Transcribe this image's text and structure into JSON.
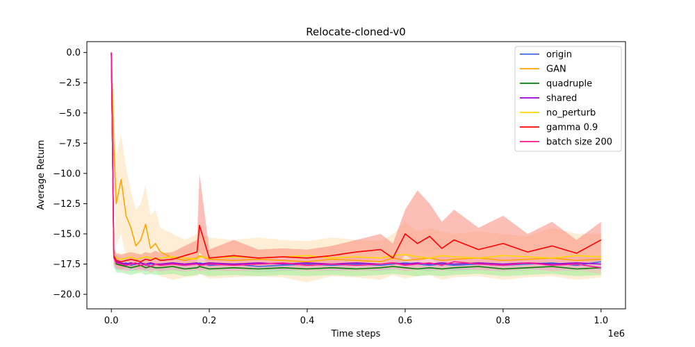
{
  "chart_data": {
    "type": "line",
    "title": "Relocate-cloned-v0",
    "xlabel": "Time steps",
    "ylabel": "Average Return",
    "x_scale_label": "1e6",
    "xlim": [
      -0.05,
      1.05
    ],
    "ylim": [
      -21.2,
      0.9
    ],
    "x_ticks": [
      0.0,
      0.2,
      0.4,
      0.6,
      0.8,
      1.0
    ],
    "x_tick_labels": [
      "0.0",
      "0.2",
      "0.4",
      "0.6",
      "0.8",
      "1.0"
    ],
    "y_ticks": [
      0.0,
      -2.5,
      -5.0,
      -7.5,
      -10.0,
      -12.5,
      -15.0,
      -17.5,
      -20.0
    ],
    "y_tick_labels": [
      "0.0",
      "−2.5",
      "−5.0",
      "−7.5",
      "−10.0",
      "−12.5",
      "−15.0",
      "−17.5",
      "−20.0"
    ],
    "grid": false,
    "legend_position": "top-right",
    "x": [
      0.0,
      0.005,
      0.01,
      0.02,
      0.03,
      0.04,
      0.05,
      0.06,
      0.07,
      0.08,
      0.09,
      0.1,
      0.125,
      0.15,
      0.175,
      0.18,
      0.2,
      0.25,
      0.3,
      0.35,
      0.4,
      0.45,
      0.5,
      0.55,
      0.575,
      0.6,
      0.625,
      0.65,
      0.675,
      0.7,
      0.75,
      0.8,
      0.85,
      0.9,
      0.95,
      1.0
    ],
    "series": [
      {
        "name": "origin",
        "color": "#4169e1",
        "band_color": "#87ceeb",
        "values": [
          0.0,
          -16.9,
          -17.4,
          -17.5,
          -17.4,
          -17.6,
          -17.5,
          -17.4,
          -17.6,
          -17.5,
          -17.5,
          -17.6,
          -17.5,
          -17.6,
          -17.5,
          -17.4,
          -17.6,
          -17.5,
          -17.7,
          -17.6,
          -17.5,
          -17.6,
          -17.5,
          -17.6,
          -17.5,
          -17.4,
          -17.5,
          -17.6,
          -17.5,
          -17.6,
          -17.5,
          -17.6,
          -17.5,
          -17.4,
          -17.6,
          -17.3
        ],
        "band_low": [
          0.0,
          -17.8,
          -18.0,
          -18.0,
          -17.9,
          -18.1,
          -18.0,
          -17.9,
          -18.1,
          -18.0,
          -18.0,
          -18.1,
          -18.0,
          -18.1,
          -18.0,
          -17.9,
          -18.1,
          -18.0,
          -18.2,
          -18.1,
          -18.0,
          -18.1,
          -18.0,
          -18.1,
          -18.0,
          -17.9,
          -18.0,
          -18.1,
          -18.0,
          -18.1,
          -18.0,
          -18.1,
          -18.0,
          -17.9,
          -18.1,
          -17.8
        ],
        "band_high": [
          0.0,
          -16.2,
          -16.8,
          -17.0,
          -16.9,
          -17.1,
          -17.0,
          -16.9,
          -17.1,
          -17.0,
          -17.0,
          -17.1,
          -17.0,
          -17.1,
          -17.0,
          -16.9,
          -17.1,
          -17.0,
          -17.2,
          -17.1,
          -17.0,
          -17.1,
          -17.0,
          -17.1,
          -17.0,
          -16.9,
          -17.0,
          -17.1,
          -17.0,
          -17.1,
          -17.0,
          -17.1,
          -17.0,
          -16.9,
          -17.1,
          -16.8
        ]
      },
      {
        "name": "GAN",
        "color": "#ffa500",
        "band_color": "#ffdead",
        "values": [
          0.0,
          -7.8,
          -12.5,
          -10.5,
          -13.5,
          -14.5,
          -16.0,
          -15.5,
          -14.2,
          -16.2,
          -15.8,
          -16.5,
          -17.0,
          -17.2,
          -17.0,
          -16.8,
          -17.1,
          -17.2,
          -17.1,
          -17.2,
          -17.3,
          -17.1,
          -17.2,
          -17.3,
          -17.0,
          -17.2,
          -17.1,
          -17.0,
          -17.2,
          -17.1,
          -17.0,
          -17.2,
          -17.1,
          -17.0,
          -17.2,
          -17.1
        ],
        "band_low": [
          0.0,
          -11.0,
          -16.0,
          -15.0,
          -17.0,
          -17.5,
          -18.2,
          -18.0,
          -17.5,
          -18.3,
          -18.0,
          -18.5,
          -18.8,
          -18.6,
          -18.5,
          -18.3,
          -18.7,
          -18.6,
          -18.5,
          -18.6,
          -19.0,
          -18.5,
          -18.6,
          -18.8,
          -18.4,
          -18.7,
          -18.5,
          -18.4,
          -18.8,
          -18.6,
          -18.5,
          -18.8,
          -18.6,
          -18.5,
          -18.8,
          -18.6
        ],
        "band_high": [
          0.0,
          -4.0,
          -8.5,
          -6.8,
          -9.5,
          -11.5,
          -13.0,
          -12.5,
          -11.0,
          -13.5,
          -13.0,
          -14.5,
          -15.0,
          -15.5,
          -15.0,
          -14.8,
          -15.3,
          -15.5,
          -15.3,
          -15.5,
          -15.6,
          -15.3,
          -15.5,
          -15.6,
          -15.0,
          -14.0,
          -14.8,
          -14.5,
          -14.8,
          -15.0,
          -14.8,
          -15.0,
          -15.2,
          -14.5,
          -15.0,
          -15.0
        ]
      },
      {
        "name": "quadruple",
        "color": "#008000",
        "band_color": "#90ee90",
        "values": [
          0.0,
          -16.8,
          -17.5,
          -17.6,
          -17.7,
          -17.8,
          -17.7,
          -17.6,
          -17.8,
          -17.7,
          -17.8,
          -17.8,
          -17.7,
          -17.9,
          -17.8,
          -17.7,
          -17.9,
          -17.8,
          -17.9,
          -17.8,
          -17.9,
          -17.8,
          -17.9,
          -17.8,
          -17.7,
          -17.8,
          -17.9,
          -17.8,
          -17.9,
          -17.8,
          -17.7,
          -17.9,
          -17.8,
          -17.7,
          -17.9,
          -17.8
        ],
        "band_low": [
          0.0,
          -17.5,
          -18.2,
          -18.2,
          -18.3,
          -18.4,
          -18.3,
          -18.2,
          -18.4,
          -18.3,
          -18.4,
          -18.4,
          -18.3,
          -18.5,
          -18.4,
          -18.3,
          -18.5,
          -18.4,
          -18.5,
          -18.4,
          -18.5,
          -18.4,
          -18.5,
          -18.4,
          -18.3,
          -18.4,
          -18.5,
          -18.4,
          -18.5,
          -18.4,
          -18.3,
          -18.5,
          -18.4,
          -18.3,
          -18.5,
          -18.4
        ],
        "band_high": [
          0.0,
          -16.2,
          -17.0,
          -17.1,
          -17.2,
          -17.3,
          -17.2,
          -17.1,
          -17.3,
          -17.2,
          -17.3,
          -17.3,
          -17.2,
          -17.4,
          -17.3,
          -17.2,
          -17.4,
          -17.3,
          -17.4,
          -17.3,
          -17.4,
          -17.3,
          -17.4,
          -17.3,
          -17.2,
          -17.3,
          -17.4,
          -17.3,
          -17.4,
          -17.3,
          -17.2,
          -17.4,
          -17.3,
          -17.2,
          -17.4,
          -17.3
        ]
      },
      {
        "name": "shared",
        "color": "#9400d3",
        "band_color": "#dda0dd",
        "values": [
          0.0,
          -16.9,
          -17.3,
          -17.4,
          -17.5,
          -17.4,
          -17.5,
          -17.4,
          -17.5,
          -17.4,
          -17.5,
          -17.5,
          -17.4,
          -17.5,
          -17.4,
          -17.5,
          -17.4,
          -17.5,
          -17.4,
          -17.5,
          -17.4,
          -17.5,
          -17.4,
          -17.5,
          -17.4,
          -17.5,
          -17.4,
          -17.5,
          -17.4,
          -17.5,
          -17.4,
          -17.5,
          -17.4,
          -17.5,
          -17.4,
          -17.5
        ],
        "band_low": [
          0.0,
          -17.5,
          -17.8,
          -17.9,
          -18.0,
          -17.9,
          -18.0,
          -17.9,
          -18.0,
          -17.9,
          -18.0,
          -18.0,
          -17.9,
          -18.0,
          -17.9,
          -18.0,
          -17.9,
          -18.0,
          -17.9,
          -18.0,
          -17.9,
          -18.0,
          -17.9,
          -18.0,
          -17.9,
          -18.0,
          -17.9,
          -18.0,
          -17.9,
          -18.0,
          -17.9,
          -18.0,
          -17.9,
          -18.0,
          -17.9,
          -18.0
        ],
        "band_high": [
          0.0,
          -16.3,
          -16.8,
          -16.9,
          -17.0,
          -16.9,
          -17.0,
          -16.9,
          -17.0,
          -16.9,
          -17.0,
          -17.0,
          -16.9,
          -17.0,
          -16.9,
          -17.0,
          -16.9,
          -17.0,
          -16.9,
          -17.0,
          -16.9,
          -17.0,
          -16.9,
          -17.0,
          -16.9,
          -17.0,
          -16.9,
          -17.0,
          -16.9,
          -17.0,
          -16.9,
          -17.0,
          -16.9,
          -17.0,
          -16.9,
          -17.0
        ]
      },
      {
        "name": "no_perturb",
        "color": "#ffd700",
        "band_color": "#fffacd",
        "values": [
          0.0,
          -16.7,
          -17.0,
          -17.1,
          -17.0,
          -16.9,
          -17.1,
          -17.0,
          -16.9,
          -17.0,
          -17.1,
          -17.0,
          -16.9,
          -17.0,
          -17.1,
          -16.9,
          -17.0,
          -16.9,
          -17.0,
          -16.9,
          -16.8,
          -17.0,
          -16.9,
          -17.0,
          -16.8,
          -16.7,
          -16.9,
          -17.0,
          -16.8,
          -16.9,
          -17.0,
          -16.8,
          -16.9,
          -17.0,
          -16.8,
          -16.9
        ],
        "band_low": [
          0.0,
          -17.4,
          -17.6,
          -17.6,
          -17.5,
          -17.4,
          -17.6,
          -17.5,
          -17.4,
          -17.5,
          -17.6,
          -17.5,
          -17.4,
          -17.5,
          -17.6,
          -17.4,
          -17.5,
          -17.4,
          -17.5,
          -17.4,
          -17.3,
          -17.5,
          -17.4,
          -17.5,
          -17.3,
          -17.2,
          -17.4,
          -17.5,
          -17.3,
          -17.4,
          -17.5,
          -17.3,
          -17.4,
          -17.5,
          -17.3,
          -17.4
        ],
        "band_high": [
          0.0,
          -16.0,
          -16.4,
          -16.6,
          -16.5,
          -16.4,
          -16.6,
          -16.5,
          -16.4,
          -16.5,
          -16.6,
          -16.5,
          -16.4,
          -16.5,
          -16.6,
          -16.4,
          -16.5,
          -16.4,
          -16.5,
          -16.4,
          -16.3,
          -16.5,
          -16.4,
          -16.5,
          -16.3,
          -16.2,
          -16.4,
          -16.5,
          -16.3,
          -16.4,
          -16.5,
          -16.3,
          -16.4,
          -16.5,
          -16.3,
          -16.4
        ]
      },
      {
        "name": "gamma 0.9",
        "color": "#ff0000",
        "band_color": "#fa8072",
        "values": [
          0.0,
          -16.8,
          -17.2,
          -17.3,
          -17.2,
          -17.1,
          -17.2,
          -17.3,
          -17.1,
          -17.2,
          -17.0,
          -17.2,
          -17.1,
          -16.8,
          -16.5,
          -14.3,
          -17.0,
          -16.8,
          -17.0,
          -16.9,
          -17.0,
          -16.8,
          -16.5,
          -16.3,
          -17.0,
          -15.0,
          -15.8,
          -15.2,
          -16.2,
          -15.5,
          -16.3,
          -15.8,
          -16.5,
          -16.0,
          -16.6,
          -15.5
        ],
        "band_low": [
          0.0,
          -17.5,
          -17.8,
          -17.9,
          -17.8,
          -17.7,
          -17.8,
          -17.9,
          -17.7,
          -17.8,
          -17.7,
          -17.8,
          -17.7,
          -17.6,
          -17.4,
          -16.5,
          -17.7,
          -17.6,
          -17.7,
          -17.6,
          -17.7,
          -17.6,
          -17.4,
          -17.3,
          -17.7,
          -16.8,
          -17.3,
          -17.0,
          -17.5,
          -17.2,
          -17.6,
          -17.3,
          -17.6,
          -17.4,
          -17.7,
          -17.2
        ],
        "band_high": [
          0.0,
          -16.1,
          -16.6,
          -16.7,
          -16.6,
          -16.5,
          -16.6,
          -16.7,
          -16.5,
          -16.6,
          -16.4,
          -16.6,
          -16.5,
          -16.0,
          -15.5,
          -10.0,
          -16.3,
          -15.5,
          -16.3,
          -16.2,
          -16.3,
          -16.0,
          -15.5,
          -15.0,
          -15.8,
          -13.0,
          -11.4,
          -12.5,
          -14.0,
          -13.0,
          -14.5,
          -13.5,
          -15.0,
          -14.0,
          -15.5,
          -14.0
        ]
      },
      {
        "name": "batch size 200",
        "color": "#ff1493",
        "band_color": "#ffb6c1",
        "values": [
          0.0,
          -17.0,
          -17.4,
          -17.5,
          -17.6,
          -17.5,
          -17.4,
          -17.6,
          -17.5,
          -17.7,
          -17.5,
          -17.6,
          -17.5,
          -17.6,
          -17.5,
          -17.6,
          -17.5,
          -17.6,
          -17.5,
          -17.4,
          -17.6,
          -17.5,
          -17.6,
          -17.5,
          -17.4,
          -17.6,
          -17.5,
          -17.4,
          -17.6,
          -17.3,
          -17.5,
          -17.6,
          -17.4,
          -17.6,
          -17.5,
          -17.8
        ],
        "band_low": [
          0.0,
          -17.6,
          -17.9,
          -18.0,
          -18.1,
          -18.0,
          -17.9,
          -18.1,
          -18.0,
          -18.2,
          -18.0,
          -18.1,
          -18.0,
          -18.1,
          -18.0,
          -18.1,
          -18.0,
          -18.1,
          -18.0,
          -17.9,
          -18.1,
          -18.0,
          -18.1,
          -18.0,
          -17.9,
          -18.1,
          -18.0,
          -17.9,
          -18.1,
          -17.8,
          -18.0,
          -18.1,
          -17.9,
          -18.1,
          -18.0,
          -18.3
        ],
        "band_high": [
          0.0,
          -16.4,
          -16.9,
          -17.0,
          -17.1,
          -17.0,
          -16.9,
          -17.1,
          -17.0,
          -17.2,
          -17.0,
          -17.1,
          -17.0,
          -17.1,
          -17.0,
          -17.1,
          -17.0,
          -17.1,
          -17.0,
          -16.9,
          -17.1,
          -17.0,
          -17.1,
          -17.0,
          -16.9,
          -17.1,
          -17.0,
          -16.9,
          -17.1,
          -16.8,
          -17.0,
          -17.1,
          -16.9,
          -17.1,
          -17.0,
          -17.3
        ]
      }
    ]
  }
}
